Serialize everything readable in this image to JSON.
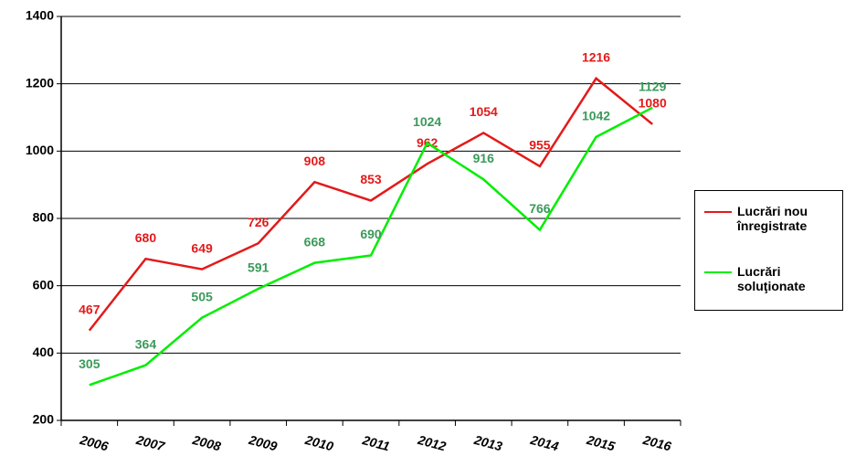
{
  "chart_data": {
    "type": "line",
    "categories": [
      "2006",
      "2007",
      "2008",
      "2009",
      "2010",
      "2011",
      "2012",
      "2013",
      "2014",
      "2015",
      "2016"
    ],
    "series": [
      {
        "name": "Lucrări nou înregistrate",
        "color": "#e31a1a",
        "label_color": "#e31a1a",
        "values": [
          467,
          680,
          649,
          726,
          908,
          853,
          962,
          1054,
          955,
          1216,
          1080
        ]
      },
      {
        "name": "Lucrări soluţionate",
        "color": "#00ee00",
        "label_color": "#3a9a5a",
        "values": [
          305,
          364,
          505,
          591,
          668,
          690,
          1024,
          916,
          766,
          1042,
          1129
        ]
      }
    ],
    "ylim": [
      200,
      1400
    ],
    "yticks": [
      200,
      400,
      600,
      800,
      1000,
      1200,
      1400
    ],
    "grid": true,
    "legend": "right"
  }
}
